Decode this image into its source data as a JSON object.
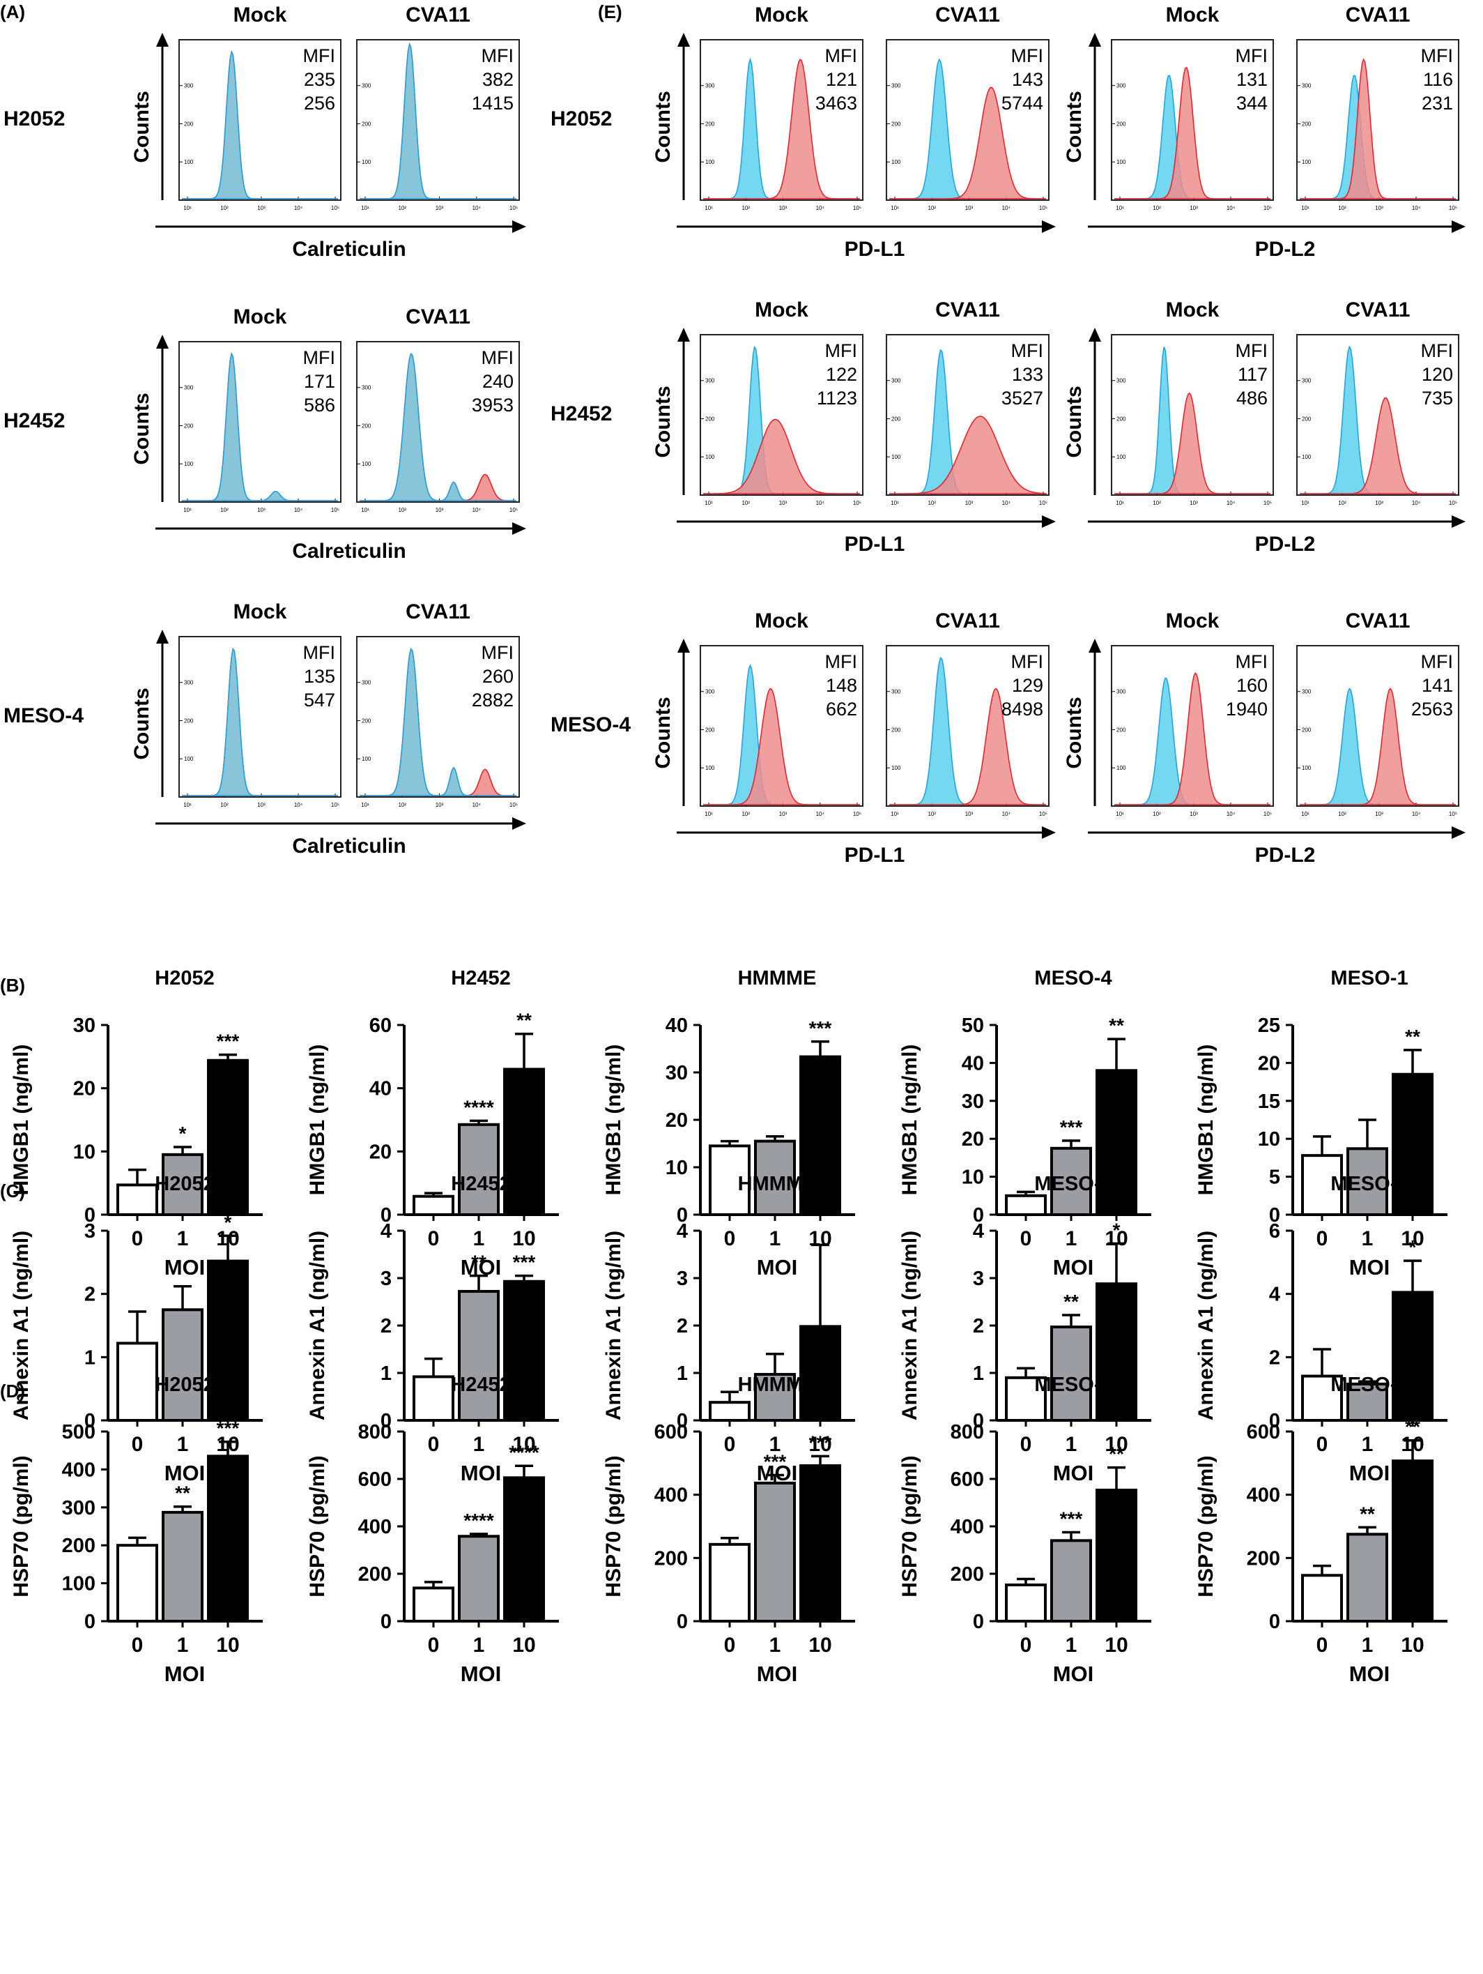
{
  "panels": {
    "A": "(A)",
    "B": "(B)",
    "C": "(C)",
    "D": "(D)",
    "E": "(E)"
  },
  "conditions": [
    "Mock",
    "CVA11"
  ],
  "mfi_label": "MFI",
  "counts_label": "Counts",
  "colors": {
    "mock": "#1ba1df",
    "cva11": "#ec1c24",
    "mock_fill": "#66d4ef",
    "cva11_fill": "#ef8d8d"
  },
  "flow_tick_labels": [
    "10¹",
    "10²",
    "10³",
    "10⁴",
    "10⁵"
  ],
  "flow_y_ticks": [
    "100",
    "200",
    "300"
  ],
  "flow": {
    "calreticulin": {
      "marker": "Calreticulin",
      "rows": [
        {
          "cell": "H2052",
          "mock": [
            "235",
            "256"
          ],
          "cva11": [
            "382",
            "1415"
          ]
        },
        {
          "cell": "H2452",
          "mock": [
            "171",
            "586"
          ],
          "cva11": [
            "240",
            "3953"
          ]
        },
        {
          "cell": "MESO-4",
          "mock": [
            "135",
            "547"
          ],
          "cva11": [
            "260",
            "2882"
          ]
        }
      ]
    },
    "pdl1": {
      "marker": "PD-L1",
      "rows": [
        {
          "cell": "H2052",
          "mock": [
            "121",
            "3463"
          ],
          "cva11": [
            "143",
            "5744"
          ]
        },
        {
          "cell": "H2452",
          "mock": [
            "122",
            "1123"
          ],
          "cva11": [
            "133",
            "3527"
          ]
        },
        {
          "cell": "MESO-4",
          "mock": [
            "148",
            "662"
          ],
          "cva11": [
            "129",
            "8498"
          ]
        }
      ]
    },
    "pdl2": {
      "marker": "PD-L2",
      "rows": [
        {
          "mock": [
            "131",
            "344"
          ],
          "cva11": [
            "116",
            "231"
          ]
        },
        {
          "mock": [
            "117",
            "486"
          ],
          "cva11": [
            "120",
            "735"
          ]
        },
        {
          "mock": [
            "160",
            "1940"
          ],
          "cva11": [
            "141",
            "2563"
          ]
        }
      ]
    }
  },
  "chart_data": [
    {
      "type": "bar",
      "panel": "B",
      "title": "H2052",
      "ylabel": "HMGB1 (ng/ml)",
      "xlabel": "MOI",
      "categories": [
        "0",
        "1",
        "10"
      ],
      "values": [
        4.7,
        9.5,
        24.4
      ],
      "errors": [
        2.4,
        1.2,
        0.9
      ],
      "sig": [
        "",
        "*",
        "***"
      ],
      "ylim": [
        0,
        30
      ],
      "yticks": [
        0,
        10,
        20,
        30
      ]
    },
    {
      "type": "bar",
      "panel": "B",
      "title": "H2452",
      "ylabel": "HMGB1 (ng/ml)",
      "xlabel": "MOI",
      "categories": [
        "0",
        "1",
        "10"
      ],
      "values": [
        5.8,
        28.5,
        46.0
      ],
      "errors": [
        1.0,
        1.2,
        11.2
      ],
      "sig": [
        "",
        "****",
        "**"
      ],
      "ylim": [
        0,
        60
      ],
      "yticks": [
        0,
        20,
        40,
        60
      ]
    },
    {
      "type": "bar",
      "panel": "B",
      "title": "HMMME",
      "ylabel": "HMGB1 (ng/ml)",
      "xlabel": "MOI",
      "categories": [
        "0",
        "1",
        "10"
      ],
      "values": [
        14.5,
        15.5,
        33.3
      ],
      "errors": [
        1.0,
        1.0,
        3.2
      ],
      "sig": [
        "",
        "",
        "***"
      ],
      "ylim": [
        0,
        40
      ],
      "yticks": [
        0,
        10,
        20,
        30,
        40
      ]
    },
    {
      "type": "bar",
      "panel": "B",
      "title": "MESO-4",
      "ylabel": "HMGB1 (ng/ml)",
      "xlabel": "MOI",
      "categories": [
        "0",
        "1",
        "10"
      ],
      "values": [
        5.0,
        17.5,
        38.0
      ],
      "errors": [
        1.0,
        2.0,
        8.3
      ],
      "sig": [
        "",
        "***",
        "**"
      ],
      "ylim": [
        0,
        50
      ],
      "yticks": [
        0,
        10,
        20,
        30,
        40,
        50
      ]
    },
    {
      "type": "bar",
      "panel": "B",
      "title": "MESO-1",
      "ylabel": "HMGB1 (ng/ml)",
      "xlabel": "MOI",
      "categories": [
        "0",
        "1",
        "10"
      ],
      "values": [
        7.8,
        8.7,
        18.5
      ],
      "errors": [
        2.5,
        3.8,
        3.2
      ],
      "sig": [
        "",
        "",
        "**"
      ],
      "ylim": [
        0,
        25
      ],
      "yticks": [
        0,
        5,
        10,
        15,
        20,
        25
      ]
    },
    {
      "type": "bar",
      "panel": "C",
      "title": "H2052",
      "ylabel": "Annexin A1 (ng/ml)",
      "xlabel": "MOI",
      "categories": [
        "0",
        "1",
        "10"
      ],
      "values": [
        1.22,
        1.75,
        2.52
      ],
      "errors": [
        0.5,
        0.37,
        0.4
      ],
      "sig": [
        "",
        "",
        "*"
      ],
      "ylim": [
        0,
        3
      ],
      "yticks": [
        0,
        1,
        2,
        3
      ]
    },
    {
      "type": "bar",
      "panel": "C",
      "title": "H2452",
      "ylabel": "Annexin A1 (ng/ml)",
      "xlabel": "MOI",
      "categories": [
        "0",
        "1",
        "10"
      ],
      "values": [
        0.92,
        2.72,
        2.93
      ],
      "errors": [
        0.38,
        0.33,
        0.12
      ],
      "sig": [
        "",
        "**",
        "***"
      ],
      "ylim": [
        0,
        4
      ],
      "yticks": [
        0,
        1,
        2,
        3,
        4
      ]
    },
    {
      "type": "bar",
      "panel": "C",
      "title": "HMMME",
      "ylabel": "Annexin A1 (ng/ml)",
      "xlabel": "MOI",
      "categories": [
        "0",
        "1",
        "10"
      ],
      "values": [
        0.38,
        0.97,
        1.98
      ],
      "errors": [
        0.22,
        0.43,
        1.72
      ],
      "sig": [
        "",
        "",
        ""
      ],
      "ylim": [
        0,
        4
      ],
      "yticks": [
        0,
        1,
        2,
        3,
        4
      ]
    },
    {
      "type": "bar",
      "panel": "C",
      "title": "MESO-4",
      "ylabel": "Annexin A1 (ng/ml)",
      "xlabel": "MOI",
      "categories": [
        "0",
        "1",
        "10"
      ],
      "values": [
        0.9,
        1.97,
        2.88
      ],
      "errors": [
        0.2,
        0.25,
        0.85
      ],
      "sig": [
        "",
        "**",
        "*"
      ],
      "ylim": [
        0,
        4
      ],
      "yticks": [
        0,
        1,
        2,
        3,
        4
      ]
    },
    {
      "type": "bar",
      "panel": "C",
      "title": "MESO-1",
      "ylabel": "Annexin A1 (ng/ml)",
      "xlabel": "MOI",
      "categories": [
        "0",
        "1",
        "10"
      ],
      "values": [
        1.4,
        1.15,
        4.05
      ],
      "errors": [
        0.85,
        0.08,
        1.0
      ],
      "sig": [
        "",
        "",
        "*"
      ],
      "ylim": [
        0,
        6
      ],
      "yticks": [
        0,
        2,
        4,
        6
      ]
    },
    {
      "type": "bar",
      "panel": "D",
      "title": "H2052",
      "ylabel": "HSP70 (pg/ml)",
      "xlabel": "MOI",
      "categories": [
        "0",
        "1",
        "10"
      ],
      "values": [
        200,
        287,
        435
      ],
      "errors": [
        20,
        15,
        38
      ],
      "sig": [
        "",
        "**",
        "***"
      ],
      "ylim": [
        0,
        500
      ],
      "yticks": [
        0,
        100,
        200,
        300,
        400,
        500
      ]
    },
    {
      "type": "bar",
      "panel": "D",
      "title": "H2452",
      "ylabel": "HSP70 (pg/ml)",
      "xlabel": "MOI",
      "categories": [
        "0",
        "1",
        "10"
      ],
      "values": [
        140,
        358,
        605
      ],
      "errors": [
        25,
        10,
        50
      ],
      "sig": [
        "",
        "****",
        "****"
      ],
      "ylim": [
        0,
        800
      ],
      "yticks": [
        0,
        200,
        400,
        600,
        800
      ]
    },
    {
      "type": "bar",
      "panel": "D",
      "title": "HMMME",
      "ylabel": "HSP70 (pg/ml)",
      "xlabel": "MOI",
      "categories": [
        "0",
        "1",
        "10"
      ],
      "values": [
        243,
        437,
        492
      ],
      "errors": [
        20,
        25,
        30
      ],
      "sig": [
        "",
        "***",
        "***"
      ],
      "ylim": [
        0,
        600
      ],
      "yticks": [
        0,
        200,
        400,
        600
      ]
    },
    {
      "type": "bar",
      "panel": "D",
      "title": "MESO-4",
      "ylabel": "HSP70 (pg/ml)",
      "xlabel": "MOI",
      "categories": [
        "0",
        "1",
        "10"
      ],
      "values": [
        153,
        340,
        553
      ],
      "errors": [
        25,
        35,
        95
      ],
      "sig": [
        "",
        "***",
        "**"
      ],
      "ylim": [
        0,
        800
      ],
      "yticks": [
        0,
        200,
        400,
        600,
        800
      ]
    },
    {
      "type": "bar",
      "panel": "D",
      "title": "MESO-1",
      "ylabel": "HSP70 (pg/ml)",
      "xlabel": "MOI",
      "categories": [
        "0",
        "1",
        "10"
      ],
      "values": [
        145,
        275,
        507
      ],
      "errors": [
        30,
        22,
        65
      ],
      "sig": [
        "",
        "**",
        "**"
      ],
      "ylim": [
        0,
        600
      ],
      "yticks": [
        0,
        200,
        400,
        600
      ]
    }
  ]
}
